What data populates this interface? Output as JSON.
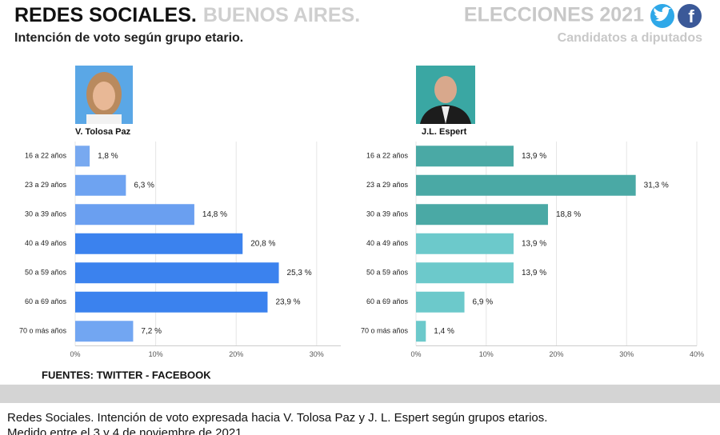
{
  "header": {
    "title": "REDES SOCIALES.",
    "region": "BUENOS AIRES.",
    "election": "ELECCIONES 2021",
    "subtitle": "Intención de voto según grupo etario.",
    "note": "Candidatos a diputados"
  },
  "footer": {
    "source": "FUENTES: TWITTER - FACEBOOK",
    "caption": [
      "Redes Sociales. Intención de voto expresada hacia V. Tolosa Paz y J. L. Espert según grupos etarios.",
      "Medido entre el 3 y 4 de noviembre de 2021."
    ]
  },
  "chart_data": [
    {
      "type": "bar",
      "orientation": "horizontal",
      "title": "V. Tolosa Paz",
      "categories": [
        "16 a 22 años",
        "23 a 29 años",
        "30 a 39 años",
        "40 a 49 años",
        "50 a 59 años",
        "60 a 69 años",
        "70 o más años"
      ],
      "values": [
        1.8,
        6.3,
        14.8,
        20.8,
        25.3,
        23.9,
        7.2
      ],
      "value_labels": [
        "1,8 %",
        "6,3 %",
        "14,8 %",
        "20,8 %",
        "25,3 %",
        "23,9 %",
        "7,2 %"
      ],
      "colors": [
        "#78a9f0",
        "#6ea3f1",
        "#6a9ff0",
        "#3b82ee",
        "#3b82ee",
        "#3b82ee",
        "#72a6f2"
      ],
      "xlim": [
        0,
        33
      ],
      "xticks": [
        {
          "value": 0,
          "label": "0%"
        },
        {
          "value": 10,
          "label": "10%"
        },
        {
          "value": 20,
          "label": "20%"
        },
        {
          "value": 30,
          "label": "30%"
        }
      ],
      "grid": true
    },
    {
      "type": "bar",
      "orientation": "horizontal",
      "title": "J.L. Espert",
      "categories": [
        "16 a 22 años",
        "23 a 29 años",
        "30 a 39 años",
        "40 a 49 años",
        "50 a 59 años",
        "60 a 69 años",
        "70 o más años"
      ],
      "values": [
        13.9,
        31.3,
        18.8,
        13.9,
        13.9,
        6.9,
        1.4
      ],
      "value_labels": [
        "13,9 %",
        "31,3 %",
        "18,8 %",
        "13,9 %",
        "13,9 %",
        "6,9 %",
        "1,4 %"
      ],
      "colors": [
        "#4aa9a5",
        "#4aa9a5",
        "#4aa9a5",
        "#6cc9cb",
        "#6cc9cb",
        "#6cc9cb",
        "#6cc9cb"
      ],
      "xlim": [
        0,
        40
      ],
      "xticks": [
        {
          "value": 0,
          "label": "0%"
        },
        {
          "value": 10,
          "label": "10%"
        },
        {
          "value": 20,
          "label": "20%"
        },
        {
          "value": 30,
          "label": "30%"
        },
        {
          "value": 40,
          "label": "40%"
        }
      ],
      "grid": true
    }
  ]
}
